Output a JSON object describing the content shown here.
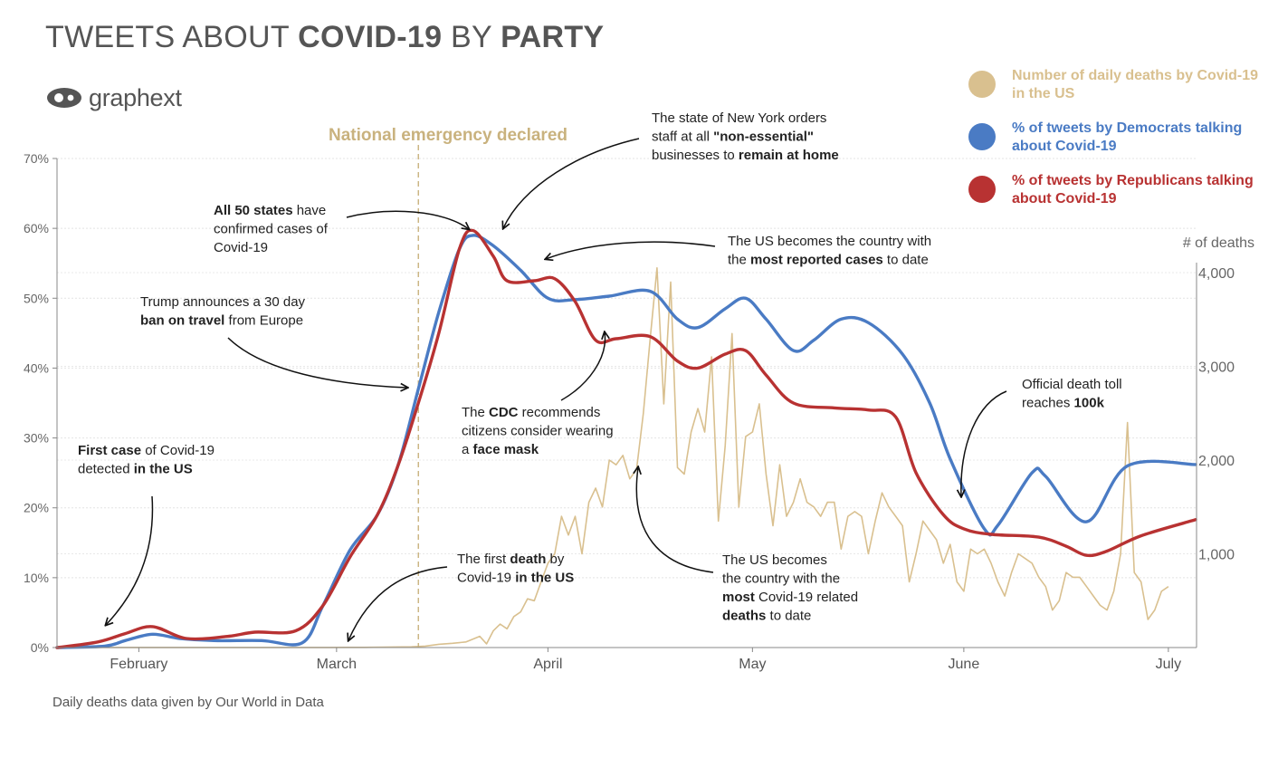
{
  "title": {
    "pre": "TWEETS ABOUT ",
    "bold1": "COVID-19",
    "mid": " BY ",
    "bold2": "PARTY"
  },
  "logo": {
    "text": "graphext",
    "icon": "graphext-logo-icon"
  },
  "legend": [
    {
      "label": "Number of daily deaths by Covid-19 in the US",
      "color": "#d9c08f"
    },
    {
      "label": "% of tweets by Democrats talking about Covid-19",
      "color": "#4a7bc4"
    },
    {
      "label": "% of tweets by Republicans talking about Covid-19",
      "color": "#b83232"
    }
  ],
  "footnote": "Daily deaths data given by Our World in Data",
  "chart_data": {
    "type": "line",
    "x_axis": {
      "start": "2020-01-20",
      "end": "2020-07-05",
      "tick_labels": [
        "February",
        "March",
        "April",
        "May",
        "June",
        "July"
      ],
      "tick_dates": [
        "2020-02-01",
        "2020-03-01",
        "2020-04-01",
        "2020-05-01",
        "2020-06-01",
        "2020-07-01"
      ]
    },
    "y_left": {
      "ticks": [
        "0%",
        "10%",
        "20%",
        "30%",
        "40%",
        "50%",
        "60%",
        "70%"
      ],
      "range": [
        0,
        70
      ],
      "unit": "%"
    },
    "y_right": {
      "label": "# of deaths",
      "ticks": [
        "1,000",
        "2,000",
        "3,000",
        "4,000"
      ],
      "range": [
        0,
        5250
      ]
    },
    "grid": true,
    "series": [
      {
        "name": "% of tweets by Democrats talking about Covid-19",
        "axis": "left",
        "color": "#4a7bc4",
        "points": [
          [
            "2020-01-20",
            0
          ],
          [
            "2020-01-27",
            0.2
          ],
          [
            "2020-01-30",
            1
          ],
          [
            "2020-02-03",
            1.9
          ],
          [
            "2020-02-07",
            1.3
          ],
          [
            "2020-02-12",
            1
          ],
          [
            "2020-02-19",
            1
          ],
          [
            "2020-02-25",
            0.7
          ],
          [
            "2020-02-28",
            6
          ],
          [
            "2020-03-03",
            14
          ],
          [
            "2020-03-07",
            19
          ],
          [
            "2020-03-10",
            26
          ],
          [
            "2020-03-13",
            37
          ],
          [
            "2020-03-16",
            48
          ],
          [
            "2020-03-19",
            57
          ],
          [
            "2020-03-21",
            59
          ],
          [
            "2020-03-24",
            57.5
          ],
          [
            "2020-03-28",
            54
          ],
          [
            "2020-04-01",
            50
          ],
          [
            "2020-04-05",
            49.8
          ],
          [
            "2020-04-10",
            50.3
          ],
          [
            "2020-04-16",
            51
          ],
          [
            "2020-04-20",
            47
          ],
          [
            "2020-04-23",
            45.8
          ],
          [
            "2020-04-27",
            48.5
          ],
          [
            "2020-04-30",
            50
          ],
          [
            "2020-05-03",
            47
          ],
          [
            "2020-05-07",
            42.5
          ],
          [
            "2020-05-10",
            44
          ],
          [
            "2020-05-14",
            47
          ],
          [
            "2020-05-18",
            46.5
          ],
          [
            "2020-05-23",
            42
          ],
          [
            "2020-05-27",
            35
          ],
          [
            "2020-05-30",
            27
          ],
          [
            "2020-06-04",
            17
          ],
          [
            "2020-06-06",
            17.5
          ],
          [
            "2020-06-11",
            25
          ],
          [
            "2020-06-13",
            24.5
          ],
          [
            "2020-06-19",
            18
          ],
          [
            "2020-06-25",
            26
          ],
          [
            "2020-07-05",
            26.2
          ]
        ]
      },
      {
        "name": "% of tweets by Republicans talking about Covid-19",
        "axis": "left",
        "color": "#b83232",
        "points": [
          [
            "2020-01-20",
            0
          ],
          [
            "2020-01-26",
            0.8
          ],
          [
            "2020-01-30",
            2
          ],
          [
            "2020-02-03",
            3
          ],
          [
            "2020-02-08",
            1.3
          ],
          [
            "2020-02-14",
            1.6
          ],
          [
            "2020-02-18",
            2.2
          ],
          [
            "2020-02-24",
            2.4
          ],
          [
            "2020-02-28",
            6
          ],
          [
            "2020-03-03",
            13
          ],
          [
            "2020-03-07",
            19
          ],
          [
            "2020-03-10",
            26
          ],
          [
            "2020-03-13",
            35
          ],
          [
            "2020-03-16",
            45
          ],
          [
            "2020-03-19",
            57
          ],
          [
            "2020-03-21",
            59.7
          ],
          [
            "2020-03-24",
            56
          ],
          [
            "2020-03-26",
            52.5
          ],
          [
            "2020-03-30",
            52.5
          ],
          [
            "2020-04-02",
            52.8
          ],
          [
            "2020-04-05",
            49.5
          ],
          [
            "2020-04-08",
            44
          ],
          [
            "2020-04-11",
            44.2
          ],
          [
            "2020-04-16",
            44.5
          ],
          [
            "2020-04-20",
            41
          ],
          [
            "2020-04-23",
            40
          ],
          [
            "2020-04-27",
            42
          ],
          [
            "2020-04-30",
            42.5
          ],
          [
            "2020-05-03",
            39
          ],
          [
            "2020-05-07",
            35
          ],
          [
            "2020-05-13",
            34.3
          ],
          [
            "2020-05-18",
            34
          ],
          [
            "2020-05-22",
            33
          ],
          [
            "2020-05-25",
            25
          ],
          [
            "2020-05-29",
            19
          ],
          [
            "2020-06-01",
            17
          ],
          [
            "2020-06-05",
            16.2
          ],
          [
            "2020-06-12",
            15.8
          ],
          [
            "2020-06-16",
            14.5
          ],
          [
            "2020-06-19",
            13.2
          ],
          [
            "2020-06-22",
            13.8
          ],
          [
            "2020-06-27",
            16
          ],
          [
            "2020-07-05",
            18.3
          ]
        ]
      },
      {
        "name": "Number of daily deaths by Covid-19 in the US",
        "axis": "right",
        "color": "#d9c08f",
        "points": [
          [
            "2020-01-20",
            0
          ],
          [
            "2020-02-29",
            1
          ],
          [
            "2020-03-05",
            2
          ],
          [
            "2020-03-08",
            4
          ],
          [
            "2020-03-12",
            8
          ],
          [
            "2020-03-14",
            15
          ],
          [
            "2020-03-16",
            35
          ],
          [
            "2020-03-18",
            45
          ],
          [
            "2020-03-20",
            60
          ],
          [
            "2020-03-22",
            120
          ],
          [
            "2020-03-23",
            40
          ],
          [
            "2020-03-24",
            180
          ],
          [
            "2020-03-25",
            250
          ],
          [
            "2020-03-26",
            200
          ],
          [
            "2020-03-27",
            330
          ],
          [
            "2020-03-28",
            380
          ],
          [
            "2020-03-29",
            520
          ],
          [
            "2020-03-30",
            500
          ],
          [
            "2020-03-31",
            700
          ],
          [
            "2020-04-01",
            900
          ],
          [
            "2020-04-02",
            1000
          ],
          [
            "2020-04-03",
            1400
          ],
          [
            "2020-04-04",
            1200
          ],
          [
            "2020-04-05",
            1400
          ],
          [
            "2020-04-06",
            1000
          ],
          [
            "2020-04-07",
            1550
          ],
          [
            "2020-04-08",
            1700
          ],
          [
            "2020-04-09",
            1500
          ],
          [
            "2020-04-10",
            2000
          ],
          [
            "2020-04-11",
            1950
          ],
          [
            "2020-04-12",
            2050
          ],
          [
            "2020-04-13",
            1800
          ],
          [
            "2020-04-14",
            1900
          ],
          [
            "2020-04-15",
            2500
          ],
          [
            "2020-04-16",
            3300
          ],
          [
            "2020-04-17",
            4050
          ],
          [
            "2020-04-18",
            2600
          ],
          [
            "2020-04-19",
            3900
          ],
          [
            "2020-04-20",
            1920
          ],
          [
            "2020-04-21",
            1850
          ],
          [
            "2020-04-22",
            2300
          ],
          [
            "2020-04-23",
            2550
          ],
          [
            "2020-04-24",
            2300
          ],
          [
            "2020-04-25",
            3100
          ],
          [
            "2020-04-26",
            1350
          ],
          [
            "2020-04-27",
            2150
          ],
          [
            "2020-04-28",
            3350
          ],
          [
            "2020-04-29",
            1500
          ],
          [
            "2020-04-30",
            2250
          ],
          [
            "2020-05-01",
            2300
          ],
          [
            "2020-05-02",
            2600
          ],
          [
            "2020-05-03",
            1850
          ],
          [
            "2020-05-04",
            1300
          ],
          [
            "2020-05-05",
            1950
          ],
          [
            "2020-05-06",
            1400
          ],
          [
            "2020-05-07",
            1550
          ],
          [
            "2020-05-08",
            1800
          ],
          [
            "2020-05-09",
            1550
          ],
          [
            "2020-05-10",
            1500
          ],
          [
            "2020-05-11",
            1400
          ],
          [
            "2020-05-12",
            1550
          ],
          [
            "2020-05-13",
            1550
          ],
          [
            "2020-05-14",
            1050
          ],
          [
            "2020-05-15",
            1400
          ],
          [
            "2020-05-16",
            1450
          ],
          [
            "2020-05-17",
            1400
          ],
          [
            "2020-05-18",
            1000
          ],
          [
            "2020-05-19",
            1350
          ],
          [
            "2020-05-20",
            1650
          ],
          [
            "2020-05-21",
            1500
          ],
          [
            "2020-05-22",
            1400
          ],
          [
            "2020-05-23",
            1300
          ],
          [
            "2020-05-24",
            700
          ],
          [
            "2020-05-25",
            1000
          ],
          [
            "2020-05-26",
            1350
          ],
          [
            "2020-05-27",
            1250
          ],
          [
            "2020-05-28",
            1150
          ],
          [
            "2020-05-29",
            900
          ],
          [
            "2020-05-30",
            1100
          ],
          [
            "2020-05-31",
            700
          ],
          [
            "2020-06-01",
            600
          ],
          [
            "2020-06-02",
            1050
          ],
          [
            "2020-06-03",
            1000
          ],
          [
            "2020-06-04",
            1050
          ],
          [
            "2020-06-05",
            900
          ],
          [
            "2020-06-06",
            700
          ],
          [
            "2020-06-07",
            550
          ],
          [
            "2020-06-08",
            800
          ],
          [
            "2020-06-09",
            1000
          ],
          [
            "2020-06-10",
            950
          ],
          [
            "2020-06-11",
            900
          ],
          [
            "2020-06-12",
            750
          ],
          [
            "2020-06-13",
            650
          ],
          [
            "2020-06-14",
            400
          ],
          [
            "2020-06-15",
            500
          ],
          [
            "2020-06-16",
            800
          ],
          [
            "2020-06-17",
            750
          ],
          [
            "2020-06-18",
            750
          ],
          [
            "2020-06-19",
            650
          ],
          [
            "2020-06-20",
            550
          ],
          [
            "2020-06-21",
            450
          ],
          [
            "2020-06-22",
            400
          ],
          [
            "2020-06-23",
            600
          ],
          [
            "2020-06-24",
            1000
          ],
          [
            "2020-06-25",
            2400
          ],
          [
            "2020-06-26",
            800
          ],
          [
            "2020-06-27",
            700
          ],
          [
            "2020-06-28",
            300
          ],
          [
            "2020-06-29",
            400
          ],
          [
            "2020-06-30",
            600
          ],
          [
            "2020-07-01",
            650
          ]
        ]
      }
    ],
    "vline": {
      "date": "2020-03-13",
      "label": "National emergency declared",
      "color": "#c9b27e"
    },
    "annotations": [
      {
        "key": "a1",
        "lines": [
          [
            [
              "First case",
              true
            ],
            [
              " of Covid-19",
              false
            ]
          ],
          [
            [
              "detected ",
              false
            ],
            [
              "in the US",
              true
            ]
          ]
        ]
      },
      {
        "key": "a2",
        "lines": [
          [
            [
              "Trump announces a 30 day",
              false
            ]
          ],
          [
            [
              "ban on travel",
              true
            ],
            [
              " from Europe",
              false
            ]
          ]
        ]
      },
      {
        "key": "a3",
        "lines": [
          [
            [
              "All 50 states",
              true
            ],
            [
              " have",
              false
            ]
          ],
          [
            [
              "confirmed cases of",
              false
            ]
          ],
          [
            [
              "Covid-19",
              false
            ]
          ]
        ]
      },
      {
        "key": "a4",
        "lines": [
          [
            [
              "The state of New York orders",
              false
            ]
          ],
          [
            [
              "staff at all ",
              false
            ],
            [
              "\"non-essential\"",
              true
            ]
          ],
          [
            [
              "businesses to ",
              false
            ],
            [
              "remain at home",
              true
            ]
          ]
        ]
      },
      {
        "key": "a5",
        "lines": [
          [
            [
              "The US becomes the country with",
              false
            ]
          ],
          [
            [
              "the ",
              false
            ],
            [
              "most reported cases",
              true
            ],
            [
              " to date",
              false
            ]
          ]
        ]
      },
      {
        "key": "a6",
        "lines": [
          [
            [
              "The ",
              false
            ],
            [
              "CDC",
              true
            ],
            [
              " recommends",
              false
            ]
          ],
          [
            [
              "citizens consider wearing",
              false
            ]
          ],
          [
            [
              "a ",
              false
            ],
            [
              "face mask",
              true
            ]
          ]
        ]
      },
      {
        "key": "a7",
        "lines": [
          [
            [
              "The first ",
              false
            ],
            [
              "death",
              true
            ],
            [
              " by",
              false
            ]
          ],
          [
            [
              "Covid-19 ",
              false
            ],
            [
              "in the US",
              true
            ]
          ]
        ]
      },
      {
        "key": "a8",
        "lines": [
          [
            [
              "The US becomes",
              false
            ]
          ],
          [
            [
              "the country with the",
              false
            ]
          ],
          [
            [
              "most",
              true
            ],
            [
              " Covid-19 related",
              false
            ]
          ],
          [
            [
              "deaths",
              true
            ],
            [
              " to date",
              false
            ]
          ]
        ]
      },
      {
        "key": "a9",
        "lines": [
          [
            [
              "Official death toll",
              false
            ]
          ],
          [
            [
              "reaches ",
              false
            ],
            [
              "100k",
              true
            ]
          ]
        ]
      }
    ]
  }
}
